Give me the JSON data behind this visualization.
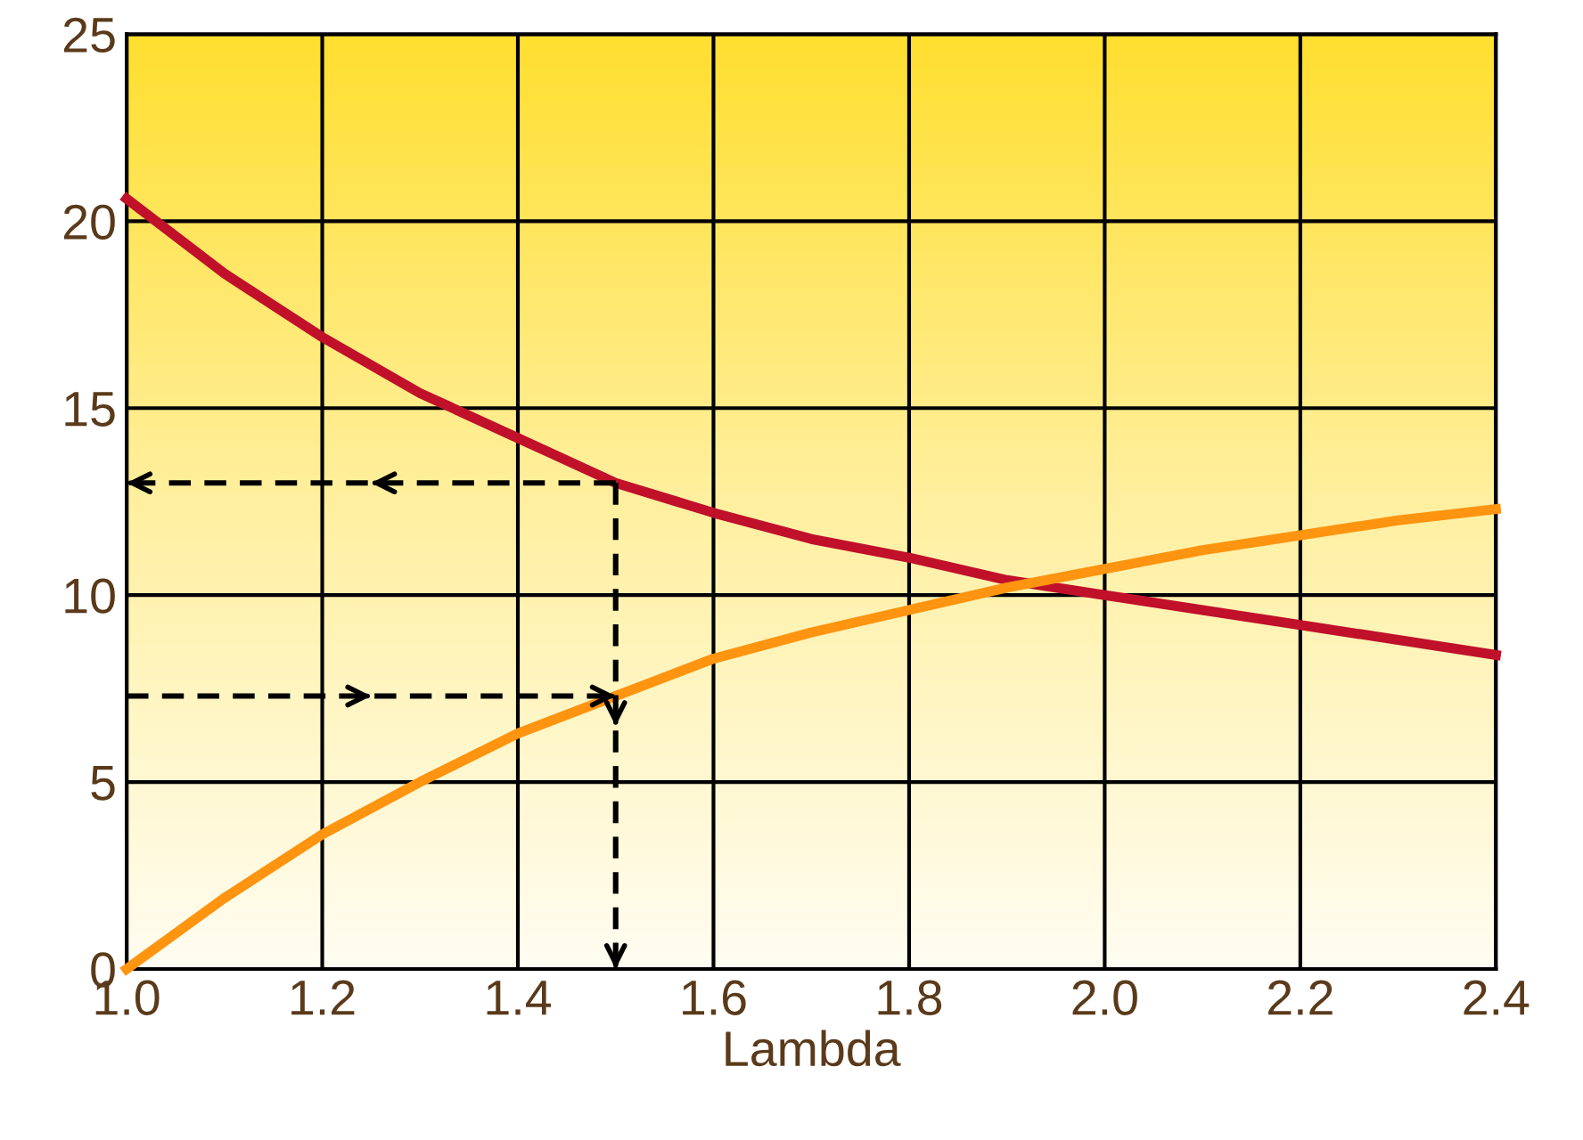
{
  "chart_data": {
    "type": "line",
    "xlabel": "Lambda",
    "xlim": [
      1.0,
      2.4
    ],
    "ylim": [
      0,
      25
    ],
    "xticks": [
      {
        "value": 1.0,
        "label": "1.0"
      },
      {
        "value": 1.2,
        "label": "1.2"
      },
      {
        "value": 1.4,
        "label": "1.4"
      },
      {
        "value": 1.6,
        "label": "1.6"
      },
      {
        "value": 1.8,
        "label": "1.8"
      },
      {
        "value": 2.0,
        "label": "2.0"
      },
      {
        "value": 2.2,
        "label": "2.2"
      },
      {
        "value": 2.4,
        "label": "2.4"
      }
    ],
    "yticks": [
      0,
      5,
      10,
      15,
      20,
      25
    ],
    "grid": true,
    "marker": "none",
    "series": [
      {
        "color": "#c0102a",
        "line_style": "solid",
        "x": [
          1.0,
          1.1,
          1.2,
          1.3,
          1.4,
          1.5,
          1.6,
          1.7,
          1.8,
          1.9,
          2.0,
          2.1,
          2.2,
          2.3,
          2.4
        ],
        "values": [
          20.6,
          18.6,
          16.9,
          15.4,
          14.2,
          13.0,
          12.2,
          11.5,
          11.0,
          10.4,
          10.0,
          9.6,
          9.2,
          8.8,
          8.4
        ]
      },
      {
        "color": "#ff9410",
        "line_style": "solid",
        "x": [
          1.0,
          1.1,
          1.2,
          1.3,
          1.4,
          1.5,
          1.6,
          1.7,
          1.8,
          1.9,
          2.0,
          2.1,
          2.2,
          2.3,
          2.4
        ],
        "values": [
          0,
          1.9,
          3.6,
          5.0,
          6.3,
          7.3,
          8.3,
          9.0,
          9.6,
          10.2,
          10.7,
          11.2,
          11.6,
          12.0,
          12.3
        ]
      },
      {
        "color": "#000000",
        "line_style": "dashed",
        "x": [
          1.5,
          1.0
        ],
        "values": [
          13,
          13
        ]
      },
      {
        "color": "#000000",
        "line_style": "dashed",
        "x": [
          1.0,
          1.5
        ],
        "values": [
          7.3,
          7.3
        ]
      },
      {
        "color": "#000000",
        "line_style": "dashed",
        "x": [
          1.5,
          1.5
        ],
        "values": [
          13,
          0
        ]
      }
    ]
  }
}
